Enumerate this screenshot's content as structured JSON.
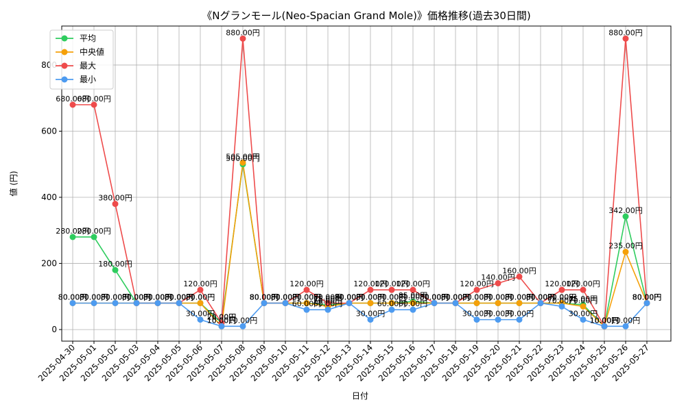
{
  "chart_data": {
    "type": "line",
    "title": "《Nグランモール(Neo-Spacian Grand Mole)》価格推移(過去30日間)",
    "xlabel": "日付",
    "ylabel": "値 (円)",
    "ylim": [
      -35,
      918
    ],
    "yticks": [
      0,
      200,
      400,
      600,
      800
    ],
    "grid": true,
    "legend_position": "top-left",
    "label_suffix": "円",
    "x": [
      "2025-04-30",
      "2025-05-01",
      "2025-05-02",
      "2025-05-03",
      "2025-05-04",
      "2025-05-05",
      "2025-05-06",
      "2025-05-07",
      "2025-05-08",
      "2025-05-09",
      "2025-05-10",
      "2025-05-11",
      "2025-05-12",
      "2025-05-13",
      "2025-05-14",
      "2025-05-15",
      "2025-05-16",
      "2025-05-17",
      "2025-05-18",
      "2025-05-19",
      "2025-05-20",
      "2025-05-21",
      "2025-05-22",
      "2025-05-23",
      "2025-05-24",
      "2025-05-25",
      "2025-05-26",
      "2025-05-27"
    ],
    "series": [
      {
        "name": "平均",
        "color": "#2ecc5e",
        "values": [
          280,
          280,
          180,
          80,
          80,
          80,
          80,
          20,
          500,
          80,
          80,
          80,
          75,
          80,
          80,
          80,
          85,
          80,
          80,
          80,
          80,
          80,
          80,
          80,
          75,
          10,
          342,
          80
        ]
      },
      {
        "name": "中央値",
        "color": "#f5a00a",
        "values": [
          80,
          80,
          80,
          80,
          80,
          80,
          80,
          10,
          505,
          80,
          80,
          80,
          70,
          80,
          80,
          80,
          80,
          80,
          80,
          80,
          80,
          80,
          80,
          80,
          70,
          10,
          235,
          80
        ]
      },
      {
        "name": "最大",
        "color": "#ee4b4b",
        "values": [
          680,
          680,
          380,
          80,
          80,
          80,
          120,
          20,
          880,
          80,
          80,
          120,
          80,
          80,
          120,
          120,
          120,
          80,
          80,
          120,
          140,
          160,
          80,
          120,
          120,
          10,
          880,
          80
        ]
      },
      {
        "name": "最小",
        "color": "#4d9bf0",
        "values": [
          80,
          80,
          80,
          80,
          80,
          80,
          30,
          10,
          10,
          80,
          80,
          60,
          60,
          80,
          30,
          60,
          60,
          80,
          80,
          30,
          30,
          30,
          80,
          70,
          30,
          10,
          10,
          80
        ]
      }
    ]
  }
}
